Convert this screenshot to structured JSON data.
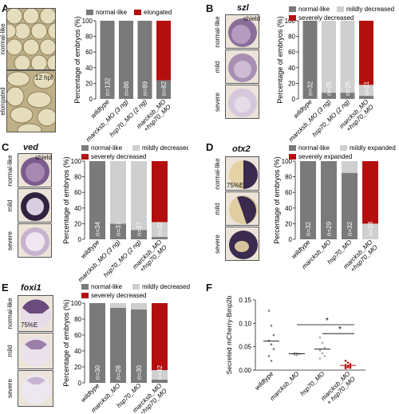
{
  "colors": {
    "normal": "#7a7a7a",
    "mild": "#cfcfcf",
    "severe": "#b40f0f",
    "bar_text": "#ffffff",
    "embryo_yolk": "#d9cca6",
    "stain": "#4a2a66"
  },
  "panels": {
    "A": {
      "label": "A",
      "rows": [
        "normal-like",
        "elongated"
      ],
      "photo_text": "12 hpf",
      "chart_data": {
        "type": "bar",
        "stacked": true,
        "ylabel": "Percentage of embryos (%)",
        "ylim": [
          0,
          100
        ],
        "yticks": [
          0,
          20,
          40,
          60,
          80,
          100
        ],
        "categories": [
          "wildtype",
          "marcksb_MO (3 ng)",
          "hsp70_MO (2 ng)",
          "marcksb_MO +hsp70_MO"
        ],
        "n_labels": [
          "n=132",
          "n=86",
          "n=89",
          "n=82"
        ],
        "series": [
          {
            "name": "normal-like",
            "color": "#7a7a7a",
            "values": [
              100,
              100,
              100,
              24
            ]
          },
          {
            "name": "elongated",
            "color": "#b40f0f",
            "values": [
              0,
              0,
              0,
              76
            ]
          }
        ]
      }
    },
    "B": {
      "label": "B",
      "gene": "szl",
      "rows": [
        "normal-like",
        "mild",
        "severe"
      ],
      "photo_text": "shield",
      "chart_data": {
        "type": "bar",
        "stacked": true,
        "ylabel": "Percentage of embryos (%)",
        "ylim": [
          0,
          100
        ],
        "yticks": [
          0,
          20,
          40,
          60,
          80,
          100
        ],
        "categories": [
          "wildtype",
          "marcksb_MO (3 ng)",
          "hsp70_MO (2 ng)",
          "marcksb_MO +hsp70_MO"
        ],
        "n_labels": [
          "n=32",
          "n=25",
          "n=26",
          "n=31"
        ],
        "series": [
          {
            "name": "normal-like",
            "color": "#7a7a7a",
            "values": [
              100,
              8,
              8,
              4
            ]
          },
          {
            "name": "mildly decreased",
            "color": "#cfcfcf",
            "values": [
              0,
              92,
              92,
              14
            ]
          },
          {
            "name": "severely decreased",
            "color": "#b40f0f",
            "values": [
              0,
              0,
              0,
              82
            ]
          }
        ]
      }
    },
    "C": {
      "label": "C",
      "gene": "ved",
      "rows": [
        "normal-like",
        "mild",
        "severe"
      ],
      "photo_text": "shield",
      "chart_data": {
        "type": "bar",
        "stacked": true,
        "ylabel": "Percentage of embryos (%)",
        "ylim": [
          0,
          100
        ],
        "yticks": [
          0,
          20,
          40,
          60,
          80,
          100
        ],
        "categories": [
          "wildtype",
          "marcksb_MO (3 ng)",
          "hsp70_MO (2 ng)",
          "marcksb_MO +hsp70_MO"
        ],
        "n_labels": [
          "n=34",
          "n=31",
          "n=27",
          "n=32"
        ],
        "series": [
          {
            "name": "normal-like",
            "color": "#7a7a7a",
            "values": [
              100,
              20,
              12,
              3
            ]
          },
          {
            "name": "mildly decreased",
            "color": "#cfcfcf",
            "values": [
              0,
              80,
              88,
              19
            ]
          },
          {
            "name": "severely decreased",
            "color": "#b40f0f",
            "values": [
              0,
              0,
              0,
              78
            ]
          }
        ]
      }
    },
    "D": {
      "label": "D",
      "gene": "otx2",
      "rows": [
        "normal-like",
        "mild",
        "severe"
      ],
      "photo_text": "75%E",
      "chart_data": {
        "type": "bar",
        "stacked": true,
        "ylabel": "Percentage of embryos (%)",
        "ylim": [
          0,
          100
        ],
        "yticks": [
          0,
          20,
          40,
          60,
          80,
          100
        ],
        "categories": [
          "wildtype",
          "marcksb_MO",
          "hsp70_MO",
          "marcksb_MO +hsp70_MO"
        ],
        "n_labels": [
          "n=32",
          "n=29",
          "n=32",
          "n=28"
        ],
        "series": [
          {
            "name": "normal-like",
            "color": "#7a7a7a",
            "values": [
              100,
              100,
              85,
              0
            ]
          },
          {
            "name": "mildly expanded",
            "color": "#cfcfcf",
            "values": [
              0,
              0,
              15,
              20
            ]
          },
          {
            "name": "severely expanded",
            "color": "#b40f0f",
            "values": [
              0,
              0,
              0,
              80
            ]
          }
        ]
      }
    },
    "E": {
      "label": "E",
      "gene": "foxi1",
      "rows": [
        "normal-like",
        "mild",
        "severe"
      ],
      "photo_text": "75%E",
      "chart_data": {
        "type": "bar",
        "stacked": true,
        "ylabel": "Percentage of embryos (%)",
        "ylim": [
          0,
          100
        ],
        "yticks": [
          0,
          20,
          40,
          60,
          80,
          100
        ],
        "categories": [
          "wildtype",
          "marcksb_MO",
          "hsp70_MO",
          "marcksb_MO +hsp70_MO"
        ],
        "n_labels": [
          "n=30",
          "n=28",
          "n=30",
          "n=32"
        ],
        "series": [
          {
            "name": "normal-like",
            "color": "#7a7a7a",
            "values": [
              100,
              94,
              92,
              4
            ]
          },
          {
            "name": "mildly decreased",
            "color": "#cfcfcf",
            "values": [
              0,
              6,
              8,
              12
            ]
          },
          {
            "name": "severely decreased",
            "color": "#b40f0f",
            "values": [
              0,
              0,
              0,
              84
            ]
          }
        ]
      }
    },
    "F": {
      "label": "F",
      "chart_data": {
        "type": "scatter",
        "ylabel": "Secreted mCherry-Bmp2b",
        "ylim": [
          0,
          0.15
        ],
        "yticks": [
          "0.00",
          "0.05",
          "0.10",
          "0.15"
        ],
        "categories": [
          "wildtype",
          "marcksb_MO",
          "hsp70_MO",
          "marcksb_MO + hsp70_MO"
        ],
        "means": [
          0.062,
          0.035,
          0.045,
          0.01
        ],
        "points": [
          [
            0.127,
            0.095,
            0.075,
            0.063,
            0.055,
            0.045,
            0.03,
            0.02
          ],
          [
            0.037,
            0.036,
            0.035,
            0.033,
            0.032
          ],
          [
            0.07,
            0.058,
            0.048,
            0.042,
            0.036,
            0.03,
            0.025
          ],
          [
            0.02,
            0.016,
            0.013,
            0.011,
            0.009,
            0.008,
            0.007,
            0.006,
            0.005,
            0.004
          ]
        ],
        "point_colors": [
          "#777777",
          "#aaaaaa",
          "#aaaaaa",
          "#b40f0f"
        ],
        "significance": [
          {
            "from": 1,
            "to": 3,
            "y": 0.097,
            "label": "*"
          },
          {
            "from": 2,
            "to": 3,
            "y": 0.078,
            "label": "*"
          }
        ]
      }
    }
  }
}
